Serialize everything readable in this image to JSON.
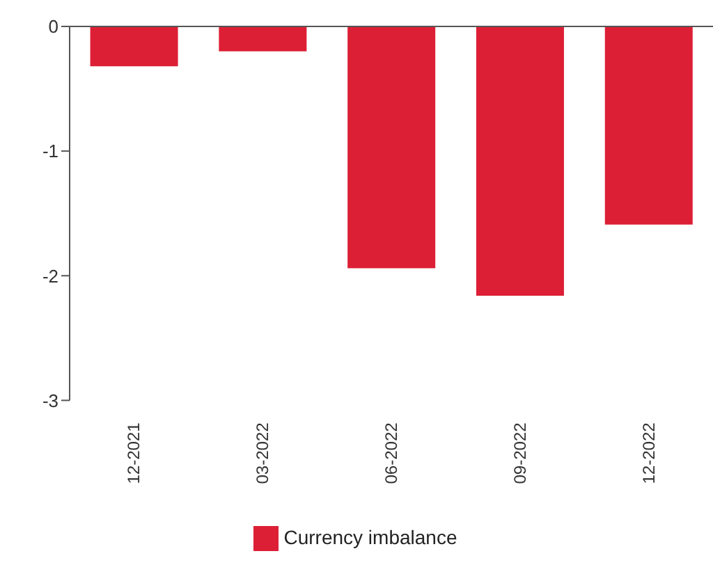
{
  "chart_data": {
    "type": "bar",
    "categories": [
      "12-2021",
      "03-2022",
      "06-2022",
      "09-2022",
      "12-2022"
    ],
    "series": [
      {
        "name": "Currency imbalance",
        "color": "#dc1f35",
        "values": [
          -0.32,
          -0.2,
          -1.94,
          -2.16,
          -1.59
        ]
      }
    ],
    "ylim": [
      -3,
      0
    ],
    "yticks": [
      -3,
      -2,
      -1,
      0
    ],
    "legend": "bottom"
  }
}
